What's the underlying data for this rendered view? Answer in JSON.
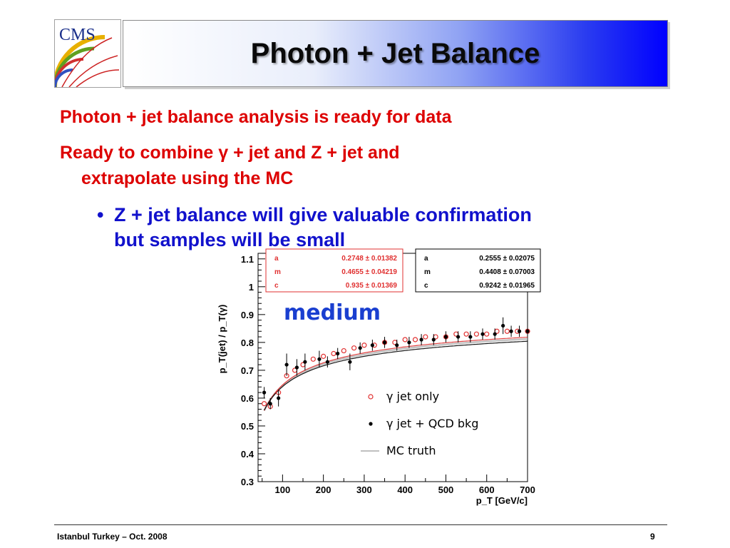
{
  "slide": {
    "title": "Photon + Jet Balance",
    "logo_text": "CMS",
    "bullets": {
      "line1": "Photon + jet balance analysis is ready for data",
      "line2a": "Ready to combine γ + jet and Z + jet  and",
      "line2b": "extrapolate using the MC",
      "sub_bullet_mark": "•",
      "sub_line1": "Z + jet balance will give valuable confirmation",
      "sub_line2": "but samples will be small"
    },
    "footer": {
      "left": "Istanbul Turkey – Oct. 2008",
      "page": "9"
    },
    "colors": {
      "bullet_red": "#dd0000",
      "bullet_blue": "#1111cc",
      "header_blue": "#0000ff",
      "series_red": "#e03030",
      "series_black": "#000000",
      "truth_gray": "#aaaaaa"
    }
  },
  "chart_data": {
    "type": "scatter",
    "xlabel": "p_T [GeV/c]",
    "ylabel": "p_T(jet) / p_T(γ)",
    "xlim": [
      40,
      700
    ],
    "ylim": [
      0.3,
      1.12
    ],
    "xticks": [
      100,
      200,
      300,
      400,
      500,
      600,
      700
    ],
    "yticks": [
      0.3,
      0.4,
      0.5,
      0.6,
      0.7,
      0.8,
      0.9,
      1.0,
      1.1
    ],
    "ytick_labels": [
      "0.3",
      "0.4",
      "0.5",
      "0.6",
      "0.7",
      "0.8",
      "0.9",
      "1",
      "1.1"
    ],
    "annotation": "medium",
    "fit_boxes": [
      {
        "color": "#e03030",
        "rows": [
          {
            "name": "a",
            "value": "0.2748 ± 0.01382"
          },
          {
            "name": "m",
            "value": "0.4655 ± 0.04219"
          },
          {
            "name": "c",
            "value": "0.935 ± 0.01369"
          }
        ]
      },
      {
        "color": "#000000",
        "rows": [
          {
            "name": "a",
            "value": "0.2555 ± 0.02075"
          },
          {
            "name": "m",
            "value": "0.4408 ± 0.07003"
          },
          {
            "name": "c",
            "value": "0.9242 ± 0.01965"
          }
        ]
      }
    ],
    "legend": [
      {
        "name": "γ jet only",
        "marker": "open-circle",
        "color": "#e03030"
      },
      {
        "name": "γ jet + QCD bkg",
        "marker": "dot",
        "color": "#000000"
      },
      {
        "name": "MC truth",
        "marker": "line",
        "color": "#aaaaaa"
      }
    ],
    "series": [
      {
        "name": "γ jet only",
        "x": [
          55,
          70,
          90,
          110,
          130,
          150,
          175,
          200,
          225,
          250,
          275,
          300,
          325,
          350,
          375,
          400,
          425,
          450,
          475,
          500,
          525,
          550,
          575,
          600,
          625,
          650,
          675,
          700
        ],
        "y": [
          0.58,
          0.57,
          0.62,
          0.68,
          0.7,
          0.72,
          0.74,
          0.75,
          0.76,
          0.77,
          0.78,
          0.79,
          0.79,
          0.8,
          0.8,
          0.81,
          0.81,
          0.82,
          0.82,
          0.82,
          0.83,
          0.83,
          0.83,
          0.83,
          0.84,
          0.84,
          0.84,
          0.84
        ]
      },
      {
        "name": "γ jet + QCD bkg",
        "x": [
          55,
          70,
          90,
          110,
          135,
          155,
          190,
          210,
          235,
          265,
          290,
          320,
          350,
          380,
          410,
          440,
          470,
          500,
          530,
          560,
          590,
          620,
          640,
          660,
          680,
          700
        ],
        "y": [
          0.62,
          0.58,
          0.6,
          0.72,
          0.71,
          0.73,
          0.74,
          0.73,
          0.76,
          0.73,
          0.78,
          0.79,
          0.8,
          0.79,
          0.8,
          0.81,
          0.81,
          0.82,
          0.82,
          0.82,
          0.83,
          0.83,
          0.86,
          0.84,
          0.84,
          0.84
        ],
        "yerr": [
          0.02,
          0.02,
          0.03,
          0.04,
          0.03,
          0.03,
          0.03,
          0.02,
          0.02,
          0.03,
          0.02,
          0.02,
          0.02,
          0.02,
          0.02,
          0.02,
          0.02,
          0.02,
          0.02,
          0.02,
          0.02,
          0.02,
          0.03,
          0.02,
          0.02,
          0.02
        ]
      }
    ],
    "curves": [
      {
        "name": "MC truth",
        "a": 0.265,
        "m": 0.455,
        "c": 0.93,
        "color": "#aaaaaa"
      },
      {
        "name": "fit γ jet only",
        "a": 0.2748,
        "m": 0.4655,
        "c": 0.935,
        "color": "#e03030"
      },
      {
        "name": "fit γ jet + QCD bkg",
        "a": 0.2555,
        "m": 0.4408,
        "c": 0.9242,
        "color": "#000000"
      }
    ]
  }
}
